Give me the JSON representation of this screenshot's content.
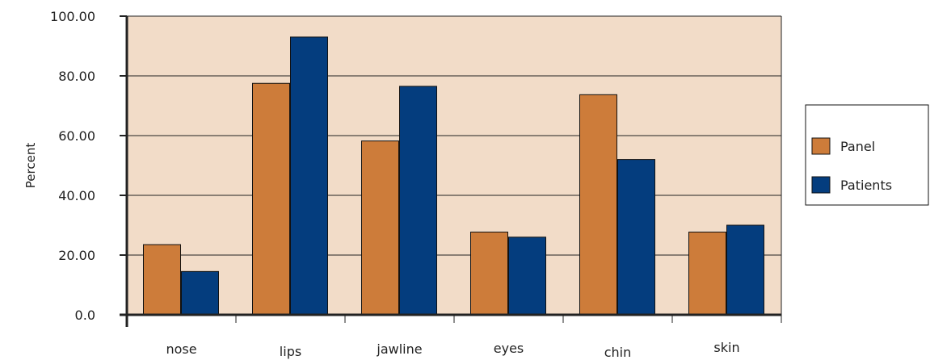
{
  "chart_data": {
    "type": "bar",
    "categories": [
      "nose",
      "lips",
      "jawline",
      "eyes",
      "chin",
      "skin"
    ],
    "series": [
      {
        "name": "Panel",
        "values": [
          23.5,
          77.5,
          58.2,
          27.7,
          73.7,
          27.7
        ]
      },
      {
        "name": "Patients",
        "values": [
          14.5,
          93.0,
          76.5,
          26.0,
          52.0,
          30.0
        ]
      }
    ],
    "xlabel": "",
    "ylabel": "Percent",
    "ylim": [
      0,
      100
    ],
    "yticks": [
      0,
      20,
      40,
      60,
      80,
      100
    ],
    "ytick_labels": [
      "0.0",
      "20.00",
      "40.00",
      "60.00",
      "80.00",
      "100.00"
    ],
    "grid": true,
    "legend_position": "right"
  },
  "colors": {
    "panel_bar": "#cd7c3a",
    "patients_bar": "#043d7e",
    "plot_background": "#f2dcc8",
    "axis": "#222222"
  }
}
